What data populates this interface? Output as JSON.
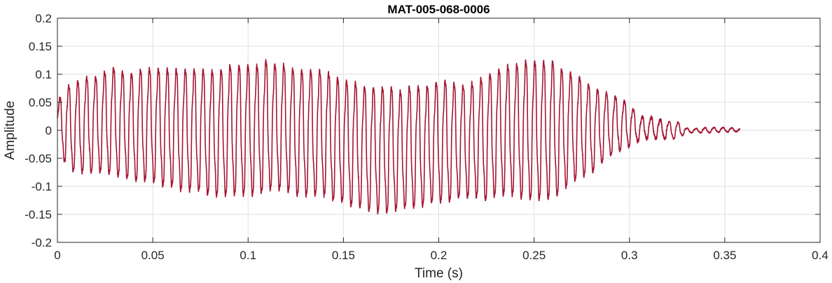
{
  "chart_data": {
    "type": "line",
    "title": "MAT-005-068-0006",
    "xlabel": "Time (s)",
    "ylabel": "Amplitude",
    "xlim": [
      0,
      0.4
    ],
    "ylim": [
      -0.2,
      0.2
    ],
    "xticks": [
      0,
      0.05,
      0.1,
      0.15,
      0.2,
      0.25,
      0.3,
      0.35,
      0.4
    ],
    "xtick_labels": [
      "0",
      "0.05",
      "0.1",
      "0.15",
      "0.2",
      "0.25",
      "0.3",
      "0.35",
      "0.4"
    ],
    "yticks": [
      -0.2,
      -0.15,
      -0.1,
      -0.05,
      0,
      0.05,
      0.1,
      0.15,
      0.2
    ],
    "ytick_labels": [
      "-0.2",
      "-0.15",
      "-0.1",
      "-0.05",
      "0",
      "0.05",
      "0.1",
      "0.15",
      "0.2"
    ],
    "grid": true,
    "legend": "none",
    "series": [
      {
        "color": "#a51632",
        "x": [
          0,
          0.005,
          0.01,
          0.015,
          0.02,
          0.025,
          0.03,
          0.035,
          0.04,
          0.045,
          0.05,
          0.055,
          0.06,
          0.065,
          0.07,
          0.075,
          0.08,
          0.085,
          0.09,
          0.095,
          0.1,
          0.105,
          0.11,
          0.115,
          0.12,
          0.125,
          0.13,
          0.135,
          0.14,
          0.145,
          0.15,
          0.155,
          0.16,
          0.165,
          0.17,
          0.175,
          0.18,
          0.185,
          0.19,
          0.195,
          0.2,
          0.205,
          0.21,
          0.215,
          0.22,
          0.225,
          0.23,
          0.235,
          0.24,
          0.245,
          0.25,
          0.255,
          0.26,
          0.265,
          0.27,
          0.275,
          0.28,
          0.285,
          0.29,
          0.295,
          0.3,
          0.305,
          0.31,
          0.315,
          0.32,
          0.325,
          0.33,
          0.335,
          0.34,
          0.345,
          0.35,
          0.355,
          0.358
        ],
        "upper": [
          0.06,
          0.1,
          0.11,
          0.12,
          0.12,
          0.13,
          0.14,
          0.13,
          0.13,
          0.14,
          0.14,
          0.14,
          0.14,
          0.14,
          0.14,
          0.14,
          0.14,
          0.14,
          0.15,
          0.15,
          0.15,
          0.15,
          0.16,
          0.15,
          0.15,
          0.14,
          0.14,
          0.14,
          0.14,
          0.13,
          0.12,
          0.12,
          0.11,
          0.11,
          0.11,
          0.11,
          0.1,
          0.11,
          0.11,
          0.11,
          0.12,
          0.12,
          0.11,
          0.11,
          0.12,
          0.13,
          0.14,
          0.15,
          0.15,
          0.16,
          0.16,
          0.16,
          0.16,
          0.14,
          0.13,
          0.12,
          0.1,
          0.09,
          0.08,
          0.07,
          0.06,
          0.03,
          0.03,
          0.025,
          0.02,
          0.02,
          0.005,
          0.004,
          0.006,
          0.006,
          0.006,
          0.005,
          0.003
        ],
        "lower": [
          -0.03,
          -0.09,
          -0.1,
          -0.1,
          -0.1,
          -0.1,
          -0.11,
          -0.11,
          -0.12,
          -0.12,
          -0.12,
          -0.13,
          -0.13,
          -0.14,
          -0.14,
          -0.14,
          -0.15,
          -0.15,
          -0.15,
          -0.15,
          -0.15,
          -0.15,
          -0.14,
          -0.14,
          -0.14,
          -0.15,
          -0.15,
          -0.15,
          -0.15,
          -0.16,
          -0.16,
          -0.17,
          -0.17,
          -0.18,
          -0.18,
          -0.18,
          -0.17,
          -0.17,
          -0.17,
          -0.16,
          -0.16,
          -0.16,
          -0.15,
          -0.15,
          -0.15,
          -0.16,
          -0.15,
          -0.15,
          -0.15,
          -0.16,
          -0.16,
          -0.16,
          -0.16,
          -0.14,
          -0.12,
          -0.11,
          -0.1,
          -0.08,
          -0.06,
          -0.05,
          -0.04,
          -0.025,
          -0.02,
          -0.02,
          -0.02,
          -0.02,
          -0.006,
          -0.005,
          -0.006,
          -0.005,
          -0.004,
          -0.004,
          -0.002
        ],
        "period": 0.0047
      }
    ]
  }
}
